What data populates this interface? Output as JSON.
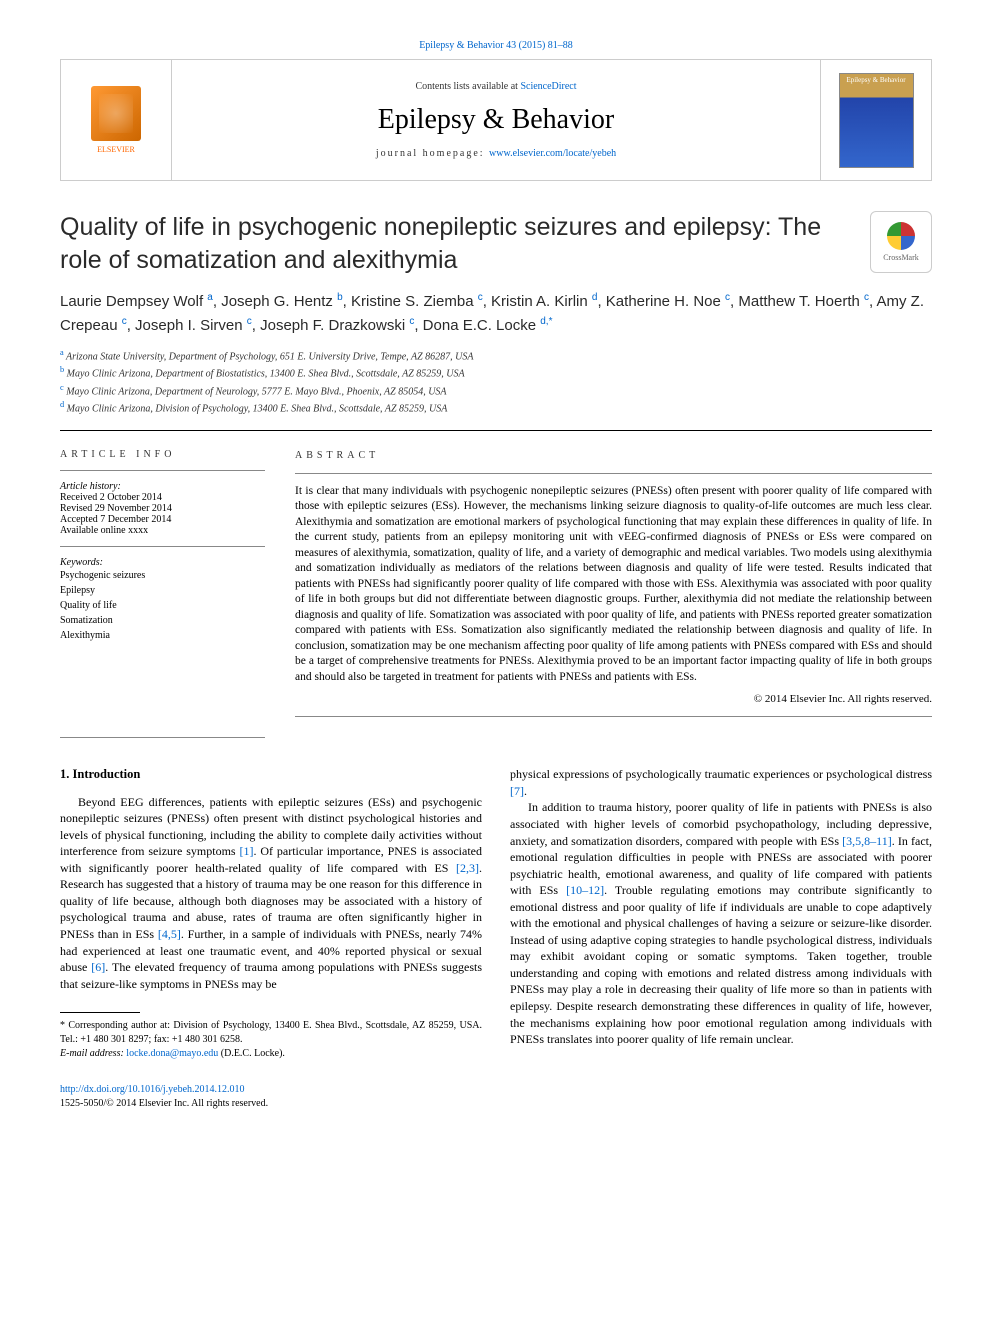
{
  "top_citation": "Epilepsy & Behavior 43 (2015) 81–88",
  "header": {
    "contents_prefix": "Contents lists available at ",
    "contents_link": "ScienceDirect",
    "journal": "Epilepsy & Behavior",
    "homepage_prefix": "journal homepage: ",
    "homepage_url": "www.elsevier.com/locate/yebeh",
    "publisher": "ELSEVIER",
    "cover_text": "Epilepsy & Behavior"
  },
  "crossmark": "CrossMark",
  "title": "Quality of life in psychogenic nonepileptic seizures and epilepsy: The role of somatization and alexithymia",
  "authors_html": "Laurie Dempsey Wolf <sup>a</sup>, Joseph G. Hentz <sup>b</sup>, Kristine S. Ziemba <sup>c</sup>, Kristin A. Kirlin <sup>d</sup>, Katherine H. Noe <sup>c</sup>, Matthew T. Hoerth <sup>c</sup>, Amy Z. Crepeau <sup>c</sup>, Joseph I. Sirven <sup>c</sup>, Joseph F. Drazkowski <sup>c</sup>, Dona E.C. Locke <sup>d,*</sup>",
  "affiliations": [
    {
      "sup": "a",
      "text": "Arizona State University, Department of Psychology, 651 E. University Drive, Tempe, AZ 86287, USA"
    },
    {
      "sup": "b",
      "text": "Mayo Clinic Arizona, Department of Biostatistics, 13400 E. Shea Blvd., Scottsdale, AZ 85259, USA"
    },
    {
      "sup": "c",
      "text": "Mayo Clinic Arizona, Department of Neurology, 5777 E. Mayo Blvd., Phoenix, AZ 85054, USA"
    },
    {
      "sup": "d",
      "text": "Mayo Clinic Arizona, Division of Psychology, 13400 E. Shea Blvd., Scottsdale, AZ 85259, USA"
    }
  ],
  "article_info": {
    "header": "ARTICLE INFO",
    "history_label": "Article history:",
    "received": "Received 2 October 2014",
    "revised": "Revised 29 November 2014",
    "accepted": "Accepted 7 December 2014",
    "available": "Available online xxxx",
    "keywords_label": "Keywords:",
    "keywords": [
      "Psychogenic seizures",
      "Epilepsy",
      "Quality of life",
      "Somatization",
      "Alexithymia"
    ]
  },
  "abstract": {
    "header": "ABSTRACT",
    "text": "It is clear that many individuals with psychogenic nonepileptic seizures (PNESs) often present with poorer quality of life compared with those with epileptic seizures (ESs). However, the mechanisms linking seizure diagnosis to quality-of-life outcomes are much less clear. Alexithymia and somatization are emotional markers of psychological functioning that may explain these differences in quality of life. In the current study, patients from an epilepsy monitoring unit with vEEG-confirmed diagnosis of PNESs or ESs were compared on measures of alexithymia, somatization, quality of life, and a variety of demographic and medical variables. Two models using alexithymia and somatization individually as mediators of the relations between diagnosis and quality of life were tested. Results indicated that patients with PNESs had significantly poorer quality of life compared with those with ESs. Alexithymia was associated with poor quality of life in both groups but did not differentiate between diagnostic groups. Further, alexithymia did not mediate the relationship between diagnosis and quality of life. Somatization was associated with poor quality of life, and patients with PNESs reported greater somatization compared with patients with ESs. Somatization also significantly mediated the relationship between diagnosis and quality of life. In conclusion, somatization may be one mechanism affecting poor quality of life among patients with PNESs compared with ESs and should be a target of comprehensive treatments for PNESs. Alexithymia proved to be an important factor impacting quality of life in both groups and should also be targeted in treatment for patients with PNESs and patients with ESs.",
    "copyright": "© 2014 Elsevier Inc. All rights reserved."
  },
  "body": {
    "heading": "1. Introduction",
    "col1_p1": "Beyond EEG differences, patients with epileptic seizures (ESs) and psychogenic nonepileptic seizures (PNESs) often present with distinct psychological histories and levels of physical functioning, including the ability to complete daily activities without interference from seizure symptoms [1]. Of particular importance, PNES is associated with significantly poorer health-related quality of life compared with ES [2,3]. Research has suggested that a history of trauma may be one reason for this difference in quality of life because, although both diagnoses may be associated with a history of psychological trauma and abuse, rates of trauma are often significantly higher in PNESs than in ESs [4,5]. Further, in a sample of individuals with PNESs, nearly 74% had experienced at least one traumatic event, and 40% reported physical or sexual abuse [6]. The elevated frequency of trauma among populations with PNESs suggests that seizure-like symptoms in PNESs may be",
    "col2_p1": "physical expressions of psychologically traumatic experiences or psychological distress [7].",
    "col2_p2": "In addition to trauma history, poorer quality of life in patients with PNESs is also associated with higher levels of comorbid psychopathology, including depressive, anxiety, and somatization disorders, compared with people with ESs [3,5,8–11]. In fact, emotional regulation difficulties in people with PNESs are associated with poorer psychiatric health, emotional awareness, and quality of life compared with patients with ESs [10–12]. Trouble regulating emotions may contribute significantly to emotional distress and poor quality of life if individuals are unable to cope adaptively with the emotional and physical challenges of having a seizure or seizure-like disorder. Instead of using adaptive coping strategies to handle psychological distress, individuals may exhibit avoidant coping or somatic symptoms. Taken together, trouble understanding and coping with emotions and related distress among individuals with PNESs may play a role in decreasing their quality of life more so than in patients with epilepsy. Despite research demonstrating these differences in quality of life, however, the mechanisms explaining how poor emotional regulation among individuals with PNESs translates into poorer quality of life remain unclear."
  },
  "footnote": {
    "corr": "* Corresponding author at: Division of Psychology, 13400 E. Shea Blvd., Scottsdale, AZ 85259, USA. Tel.: +1 480 301 8297; fax: +1 480 301 6258.",
    "email_label": "E-mail address: ",
    "email": "locke.dona@mayo.edu",
    "email_suffix": " (D.E.C. Locke)."
  },
  "bottom": {
    "doi": "http://dx.doi.org/10.1016/j.yebeh.2014.12.010",
    "issn_copyright": "1525-5050/© 2014 Elsevier Inc. All rights reserved."
  },
  "ref_links": {
    "r1": "[1]",
    "r23": "[2,3]",
    "r45": "[4,5]",
    "r6": "[6]",
    "r7": "[7]",
    "r358": "[3,5,8–11]",
    "r1012": "[10–12]"
  }
}
